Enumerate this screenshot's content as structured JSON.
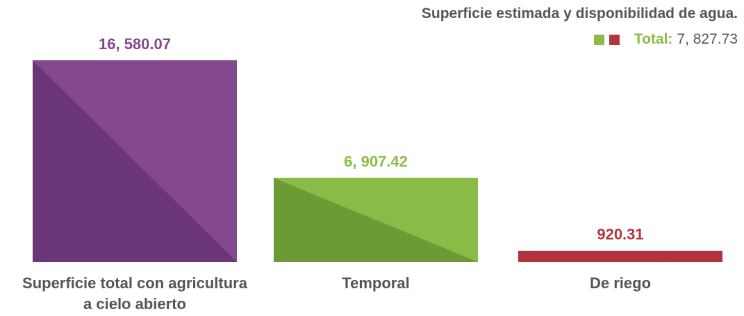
{
  "chart_data": {
    "type": "bar",
    "title": "Superficie estimada y disponibilidad de agua.",
    "categories": [
      "Superficie total con agricultura a cielo abierto",
      "Temporal",
      "De riego"
    ],
    "values": [
      16580.07,
      6907.42,
      920.31
    ],
    "value_labels": [
      "16, 580.07",
      "6, 907.42",
      "920.31"
    ],
    "colors": [
      "#84488e",
      "#8bbb47",
      "#b0353c"
    ],
    "shade_colors": [
      "#6a3679",
      "#6c9b35",
      "#b0353c"
    ],
    "total": {
      "label": "Total:",
      "value": "7, 827.73",
      "colors": [
        "#8bbb47",
        "#b0353c"
      ]
    }
  }
}
